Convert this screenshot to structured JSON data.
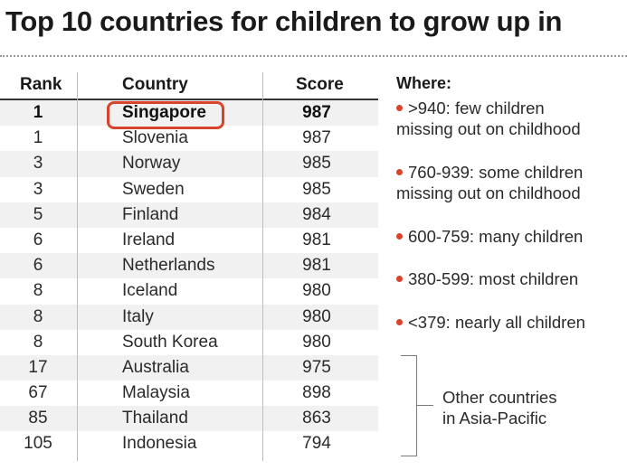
{
  "title": "Top 10 countries for children to grow up in",
  "chart_data": {
    "type": "table",
    "title": "Top 10 countries for children to grow up in",
    "columns": [
      "Rank",
      "Country",
      "Score"
    ],
    "highlighted_country": "Singapore",
    "rows": [
      {
        "rank": "1",
        "country": "Singapore",
        "score": "987"
      },
      {
        "rank": "1",
        "country": "Slovenia",
        "score": "987"
      },
      {
        "rank": "3",
        "country": "Norway",
        "score": "985"
      },
      {
        "rank": "3",
        "country": "Sweden",
        "score": "985"
      },
      {
        "rank": "5",
        "country": "Finland",
        "score": "984"
      },
      {
        "rank": "6",
        "country": "Ireland",
        "score": "981"
      },
      {
        "rank": "6",
        "country": "Netherlands",
        "score": "981"
      },
      {
        "rank": "8",
        "country": "Iceland",
        "score": "980"
      },
      {
        "rank": "8",
        "country": "Italy",
        "score": "980"
      },
      {
        "rank": "8",
        "country": "South Korea",
        "score": "980"
      },
      {
        "rank": "17",
        "country": "Australia",
        "score": "975"
      },
      {
        "rank": "67",
        "country": "Malaysia",
        "score": "898"
      },
      {
        "rank": "85",
        "country": "Thailand",
        "score": "863"
      },
      {
        "rank": "105",
        "country": "Indonesia",
        "score": "794"
      }
    ],
    "legend": {
      "title": "Where:",
      "dot_color": "#d9432c",
      "items": [
        {
          "line1": ">940: few children",
          "line2": "missing out on childhood"
        },
        {
          "line1": "760-939: some children",
          "line2": "missing out on childhood"
        },
        {
          "line1": "600-759: many children",
          "line2": ""
        },
        {
          "line1": "380-599: most children",
          "line2": ""
        },
        {
          "line1": "<379: nearly all children",
          "line2": ""
        }
      ]
    },
    "other_note": {
      "line1": "Other countries",
      "line2": "in Asia-Pacific"
    }
  },
  "colors": {
    "highlight": "#d9432c",
    "row_alt": "#f1f1f1"
  }
}
